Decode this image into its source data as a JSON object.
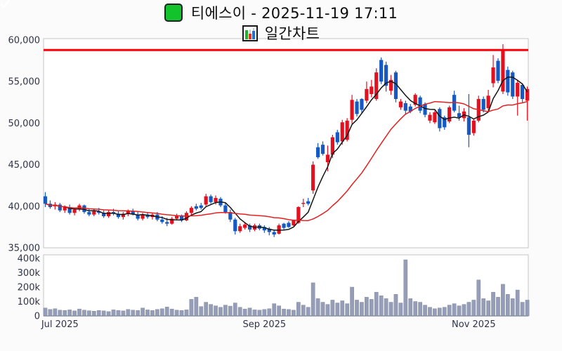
{
  "header": {
    "title": "티에스이 - 2025-11-19 17:11",
    "subtitle": "일간차트",
    "checkbox_icon": "checkbox-checked",
    "subtitle_icon": "bar-chart"
  },
  "colors": {
    "up": "#e31120",
    "down": "#1659c2",
    "ma_short": "#141414",
    "ma_long": "#e32020",
    "hline": "#ff0008",
    "volume_bar": "#969eb7",
    "axis_text": "#2f3447",
    "plot_border": "#c4c4c4",
    "plot_bg": "#ffffff",
    "page_bg": "#fbfbfb",
    "checkbox_green": "#12c32b"
  },
  "chart_data": {
    "type": "candlestick",
    "title": "티에스이 - 2025-11-19 17:11",
    "subtitle": "일간차트",
    "grid": false,
    "price_axis": {
      "min": 35000,
      "max": 60000,
      "tick_values": [
        60000,
        55000,
        50000,
        45000,
        40000,
        35000
      ],
      "tick_labels": [
        "60,000",
        "55,000",
        "50,000",
        "45,000",
        "40,000",
        "35,000"
      ]
    },
    "volume_axis": {
      "min": 0,
      "max": 400000,
      "tick_values": [
        400,
        300,
        200,
        100,
        0
      ],
      "tick_labels": [
        "400k",
        "300k",
        "200k",
        "100k",
        "0"
      ]
    },
    "x_axis": {
      "ticks": [
        {
          "label": "Jul 2025",
          "day": 3
        },
        {
          "label": "Sep 2025",
          "day": 45
        },
        {
          "label": "Nov 2025",
          "day": 88
        }
      ]
    },
    "horizontal_line": 58800,
    "moving_averages": [
      {
        "name": "short",
        "period": 5,
        "color_key": "ma_short"
      },
      {
        "name": "long",
        "period": 20,
        "color_key": "ma_long"
      }
    ],
    "candles_format": [
      "open",
      "high",
      "low",
      "close",
      "volume_k"
    ],
    "candles": [
      [
        41200,
        41700,
        39900,
        40300,
        55
      ],
      [
        40300,
        40700,
        39700,
        39900,
        45
      ],
      [
        40000,
        40500,
        39600,
        40200,
        50
      ],
      [
        40200,
        40400,
        39300,
        39500,
        40
      ],
      [
        39500,
        40100,
        39200,
        39900,
        38
      ],
      [
        39900,
        40200,
        39000,
        39200,
        42
      ],
      [
        39200,
        39800,
        38900,
        39600,
        35
      ],
      [
        39600,
        40300,
        39400,
        40100,
        48
      ],
      [
        40100,
        40200,
        39100,
        39300,
        40
      ],
      [
        39300,
        39700,
        38800,
        39000,
        36
      ],
      [
        39000,
        39600,
        38800,
        39400,
        33
      ],
      [
        39400,
        39800,
        39000,
        39200,
        38
      ],
      [
        39200,
        39500,
        38600,
        38800,
        35
      ],
      [
        38800,
        39500,
        38600,
        39300,
        30
      ],
      [
        39300,
        39700,
        38900,
        39100,
        42
      ],
      [
        39100,
        39400,
        38500,
        38700,
        38
      ],
      [
        38700,
        39300,
        38400,
        39100,
        35
      ],
      [
        39100,
        39600,
        38800,
        39400,
        45
      ],
      [
        39400,
        39700,
        38900,
        39000,
        40
      ],
      [
        39000,
        39400,
        38300,
        38500,
        38
      ],
      [
        38500,
        39200,
        38300,
        39000,
        55
      ],
      [
        39000,
        39300,
        38500,
        38700,
        42
      ],
      [
        38700,
        39200,
        38400,
        39000,
        38
      ],
      [
        39000,
        39300,
        38200,
        38400,
        45
      ],
      [
        38400,
        38800,
        37900,
        38100,
        50
      ],
      [
        38100,
        38600,
        37600,
        37900,
        62
      ],
      [
        37900,
        38700,
        37800,
        38500,
        48
      ],
      [
        38500,
        39100,
        38300,
        38900,
        40
      ],
      [
        38900,
        39000,
        38100,
        38300,
        38
      ],
      [
        38300,
        39400,
        38200,
        39200,
        42
      ],
      [
        39200,
        40000,
        39000,
        39800,
        115
      ],
      [
        40000,
        40300,
        39500,
        39700,
        130
      ],
      [
        40100,
        40400,
        39600,
        39800,
        65
      ],
      [
        40200,
        41500,
        40000,
        41200,
        95
      ],
      [
        41200,
        41400,
        40300,
        40500,
        80
      ],
      [
        40500,
        41300,
        40200,
        41000,
        70
      ],
      [
        40900,
        41100,
        39900,
        40100,
        60
      ],
      [
        40100,
        40400,
        39100,
        39300,
        75
      ],
      [
        39300,
        39600,
        38100,
        38400,
        68
      ],
      [
        38400,
        38600,
        36600,
        37000,
        90
      ],
      [
        37000,
        37900,
        36800,
        37600,
        60
      ],
      [
        37400,
        38000,
        37200,
        37800,
        48
      ],
      [
        37700,
        37900,
        36900,
        37200,
        55
      ],
      [
        37200,
        37900,
        37000,
        37700,
        42
      ],
      [
        37700,
        37900,
        37100,
        37300,
        40
      ],
      [
        37500,
        37700,
        36800,
        37100,
        45
      ],
      [
        37300,
        37500,
        36500,
        36900,
        50
      ],
      [
        36900,
        37200,
        36300,
        36600,
        85
      ],
      [
        36700,
        37900,
        36600,
        37700,
        70
      ],
      [
        37900,
        38000,
        37200,
        37400,
        48
      ],
      [
        38000,
        38200,
        37400,
        37500,
        45
      ],
      [
        37700,
        38400,
        37600,
        38300,
        40
      ],
      [
        38000,
        40000,
        37900,
        39900,
        95
      ],
      [
        40300,
        40900,
        39900,
        40400,
        75
      ],
      [
        40600,
        41000,
        40100,
        40300,
        60
      ],
      [
        41900,
        45400,
        41500,
        45000,
        230
      ],
      [
        47100,
        47600,
        45700,
        45900,
        120
      ],
      [
        47400,
        47800,
        46100,
        46300,
        95
      ],
      [
        45300,
        47300,
        44200,
        46200,
        80
      ],
      [
        46200,
        48600,
        45800,
        48300,
        110
      ],
      [
        48900,
        49200,
        47400,
        47700,
        90
      ],
      [
        47800,
        50400,
        47400,
        50100,
        105
      ],
      [
        48000,
        50600,
        47800,
        50300,
        85
      ],
      [
        50400,
        53400,
        49900,
        52800,
        200
      ],
      [
        52600,
        52900,
        50800,
        51100,
        110
      ],
      [
        52900,
        53000,
        51200,
        51600,
        95
      ],
      [
        52700,
        55000,
        52400,
        54100,
        130
      ],
      [
        53500,
        55200,
        53100,
        54400,
        115
      ],
      [
        52900,
        56600,
        52700,
        56100,
        165
      ],
      [
        57600,
        57900,
        54700,
        55000,
        140
      ],
      [
        57000,
        57400,
        53800,
        54500,
        120
      ],
      [
        53900,
        55800,
        53400,
        55200,
        95
      ],
      [
        56100,
        56300,
        52500,
        52900,
        150
      ],
      [
        51900,
        52900,
        51600,
        52600,
        90
      ],
      [
        52400,
        52700,
        51000,
        51500,
        390
      ],
      [
        52000,
        52300,
        51200,
        51400,
        120
      ],
      [
        52200,
        53600,
        52000,
        53400,
        100
      ],
      [
        53100,
        53300,
        51200,
        51500,
        95
      ],
      [
        52300,
        52500,
        50700,
        51000,
        75
      ],
      [
        50300,
        51300,
        50000,
        51000,
        60
      ],
      [
        50100,
        51500,
        49900,
        51300,
        50
      ],
      [
        51700,
        51900,
        49000,
        49400,
        55
      ],
      [
        50700,
        50900,
        49200,
        49500,
        60
      ],
      [
        50200,
        52100,
        50000,
        51900,
        75
      ],
      [
        53400,
        53900,
        51300,
        51500,
        85
      ],
      [
        51200,
        52100,
        50300,
        50700,
        70
      ],
      [
        50600,
        51800,
        50200,
        51400,
        80
      ],
      [
        50700,
        53500,
        47100,
        48600,
        95
      ],
      [
        48800,
        50500,
        48500,
        50300,
        110
      ],
      [
        50300,
        53300,
        50100,
        52900,
        250
      ],
      [
        52900,
        53200,
        51300,
        51600,
        120
      ],
      [
        51800,
        54000,
        51500,
        53300,
        105
      ],
      [
        54800,
        58200,
        54300,
        56700,
        165
      ],
      [
        57500,
        57800,
        54800,
        55100,
        130
      ],
      [
        53800,
        59500,
        53500,
        58900,
        220
      ],
      [
        56400,
        56800,
        53300,
        53700,
        150
      ],
      [
        56100,
        56300,
        52900,
        53200,
        120
      ],
      [
        53200,
        55200,
        50900,
        54850,
        180
      ],
      [
        54600,
        54800,
        52500,
        52900,
        95
      ],
      [
        52700,
        54400,
        50300,
        54100,
        110
      ]
    ]
  }
}
